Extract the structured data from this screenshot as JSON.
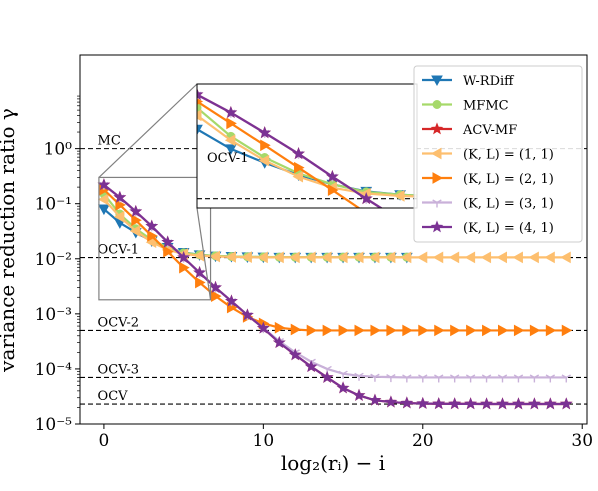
{
  "chart_data": {
    "type": "line",
    "title": "",
    "xlabel": "log₂(rᵢ) − i",
    "ylabel": "variance reduction ratio γ",
    "xlim": [
      -1.5,
      30.3
    ],
    "ylim_log10": [
      -5,
      1.7
    ],
    "yscale": "log",
    "xticks": [
      0,
      10,
      20,
      30
    ],
    "yticks": [
      {
        "exp": 0,
        "label": "10⁰"
      },
      {
        "exp": -1,
        "label": "10⁻¹"
      },
      {
        "exp": -2,
        "label": "10⁻²"
      },
      {
        "exp": -3,
        "label": "10⁻³"
      },
      {
        "exp": -4,
        "label": "10⁻⁴"
      },
      {
        "exp": -5,
        "label": "10⁻⁵"
      }
    ],
    "reference_lines": [
      {
        "label": "MC",
        "value": 1.0
      },
      {
        "label": "OCV-1",
        "value": 0.0105
      },
      {
        "label": "OCV-2",
        "value": 0.0005
      },
      {
        "label": "OCV-3",
        "value": 7e-05
      },
      {
        "label": "OCV",
        "value": 2.3e-05
      }
    ],
    "legend_position": "top-right",
    "series": [
      {
        "name": "W-RDiff",
        "color": "#1f77b4",
        "marker": "triangle-down",
        "x": [
          0,
          1,
          2,
          3,
          4,
          5,
          6,
          7,
          8,
          9,
          10,
          11,
          12,
          13,
          14,
          15,
          16,
          17,
          18,
          19
        ],
        "y": [
          0.08,
          0.045,
          0.03,
          0.021,
          0.016,
          0.013,
          0.0118,
          0.0112,
          0.011,
          0.0108,
          0.0107,
          0.0106,
          0.0106,
          0.0106,
          0.0106,
          0.0106,
          0.0106,
          0.0106,
          0.0106,
          0.0106
        ]
      },
      {
        "name": "MFMC",
        "color": "#a6d96a",
        "marker": "circle",
        "x": [
          0,
          1,
          2,
          3,
          4,
          5,
          6,
          7,
          8,
          9,
          10,
          11,
          12,
          13,
          14,
          15,
          16,
          17,
          18,
          19
        ],
        "y": [
          0.15,
          0.065,
          0.035,
          0.022,
          0.016,
          0.0128,
          0.0118,
          0.0113,
          0.011,
          0.0109,
          0.0108,
          0.0107,
          0.0107,
          0.0107,
          0.0107,
          0.0107,
          0.0107,
          0.0107,
          0.0107,
          0.0107
        ]
      },
      {
        "name": "ACV-MF",
        "color": "#d62728",
        "marker": "star",
        "x": [
          0,
          1,
          2,
          3,
          4,
          5,
          6,
          7,
          8,
          9,
          10,
          11,
          12,
          13,
          14,
          15,
          16,
          17,
          18,
          19,
          20,
          21,
          22,
          23,
          24,
          25,
          26,
          27,
          28,
          29
        ],
        "y": [
          0.22,
          0.13,
          0.072,
          0.039,
          0.02,
          0.0105,
          0.0056,
          0.003,
          0.0017,
          0.00095,
          0.00055,
          0.0003,
          0.00018,
          0.00011,
          7e-05,
          4.5e-05,
          3.3e-05,
          2.7e-05,
          2.5e-05,
          2.4e-05,
          2.35e-05,
          2.33e-05,
          2.32e-05,
          2.32e-05,
          2.31e-05,
          2.31e-05,
          2.31e-05,
          2.31e-05,
          2.31e-05,
          2.31e-05
        ]
      },
      {
        "name": "(K, L) = (1, 1)",
        "color": "#fdbf6f",
        "marker": "triangle-left",
        "x": [
          0,
          1,
          2,
          3,
          4,
          5,
          6,
          7,
          8,
          9,
          10,
          11,
          12,
          13,
          14,
          15,
          16,
          17,
          18,
          19,
          20,
          21,
          22,
          23,
          24,
          25,
          26,
          27,
          28,
          29
        ],
        "y": [
          0.12,
          0.058,
          0.032,
          0.02,
          0.0145,
          0.0122,
          0.0114,
          0.011,
          0.0108,
          0.0107,
          0.0106,
          0.0106,
          0.0106,
          0.0106,
          0.0106,
          0.0106,
          0.0106,
          0.0106,
          0.0106,
          0.0106,
          0.0106,
          0.0106,
          0.0106,
          0.0106,
          0.0106,
          0.0106,
          0.0106,
          0.0106,
          0.0106,
          0.0106
        ]
      },
      {
        "name": "(K, L) = (2, 1)",
        "color": "#ff7f0e",
        "marker": "triangle-right",
        "x": [
          0,
          1,
          2,
          3,
          4,
          5,
          6,
          7,
          8,
          9,
          10,
          11,
          12,
          13,
          14,
          15,
          16,
          17,
          18,
          19,
          20,
          21,
          22,
          23,
          24,
          25,
          26,
          27,
          28,
          29
        ],
        "y": [
          0.18,
          0.095,
          0.05,
          0.026,
          0.0135,
          0.0069,
          0.0037,
          0.0021,
          0.0013,
          0.00088,
          0.00067,
          0.00056,
          0.00052,
          0.0005,
          0.0005,
          0.0005,
          0.0005,
          0.0005,
          0.0005,
          0.0005,
          0.0005,
          0.0005,
          0.0005,
          0.0005,
          0.0005,
          0.0005,
          0.0005,
          0.0005,
          0.0005,
          0.0005
        ]
      },
      {
        "name": "(K, L) = (3, 1)",
        "color": "#c9b1d9",
        "marker": "tri-down",
        "x": [
          0,
          1,
          2,
          3,
          4,
          5,
          6,
          7,
          8,
          9,
          10,
          11,
          12,
          13,
          14,
          15,
          16,
          17,
          18,
          19,
          20,
          21,
          22,
          23,
          24,
          25,
          26,
          27,
          28,
          29
        ],
        "y": [
          0.22,
          0.13,
          0.072,
          0.039,
          0.02,
          0.0105,
          0.0056,
          0.003,
          0.0017,
          0.00095,
          0.00055,
          0.00032,
          0.0002,
          0.000135,
          0.0001,
          8.2e-05,
          7.5e-05,
          7.2e-05,
          7.1e-05,
          7e-05,
          7e-05,
          7e-05,
          7e-05,
          7e-05,
          7e-05,
          7e-05,
          7e-05,
          7e-05,
          7e-05,
          7e-05
        ]
      },
      {
        "name": "(K, L) = (4, 1)",
        "color": "#7b3294",
        "marker": "star",
        "x": [
          0,
          1,
          2,
          3,
          4,
          5,
          6,
          7,
          8,
          9,
          10,
          11,
          12,
          13,
          14,
          15,
          16,
          17,
          18,
          19,
          20,
          21,
          22,
          23,
          24,
          25,
          26,
          27,
          28,
          29
        ],
        "y": [
          0.22,
          0.13,
          0.072,
          0.039,
          0.02,
          0.0105,
          0.0056,
          0.003,
          0.0017,
          0.00095,
          0.00055,
          0.0003,
          0.00018,
          0.00011,
          7e-05,
          4.5e-05,
          3.3e-05,
          2.7e-05,
          2.5e-05,
          2.4e-05,
          2.35e-05,
          2.33e-05,
          2.32e-05,
          2.32e-05,
          2.31e-05,
          2.31e-05,
          2.31e-05,
          2.31e-05,
          2.31e-05,
          2.31e-05
        ]
      }
    ],
    "inset": {
      "xlim": [
        0,
        6.5
      ],
      "ylim": [
        0.008,
        0.3
      ],
      "ref_label": "OCV-1"
    }
  }
}
